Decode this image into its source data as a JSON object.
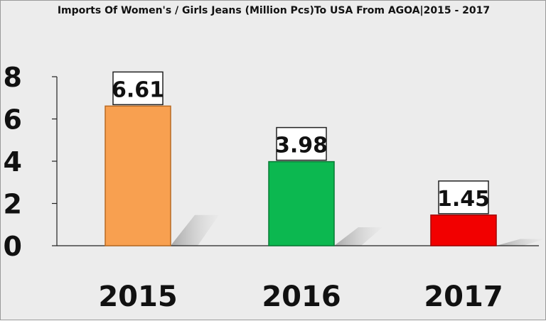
{
  "chart_data": {
    "type": "bar",
    "title": "Imports Of Women's / Girls Jeans (Million Pcs)To USA From AGOA|2015 - 2017",
    "categories": [
      "2015",
      "2016",
      "2017"
    ],
    "values": [
      6.61,
      3.98,
      1.45
    ],
    "value_labels": [
      "6.61",
      "3.98",
      "1.45"
    ],
    "bar_colors": [
      "#f8a050",
      "#0cb850",
      "#f20000"
    ],
    "bar_stroke_colors": [
      "#b96a22",
      "#077a34",
      "#a30000"
    ],
    "yticks": [
      "0",
      "2",
      "4",
      "6",
      "8"
    ],
    "ylim": [
      0,
      8
    ],
    "xlabel": "",
    "ylabel": "",
    "grid": false,
    "legend": "none"
  }
}
